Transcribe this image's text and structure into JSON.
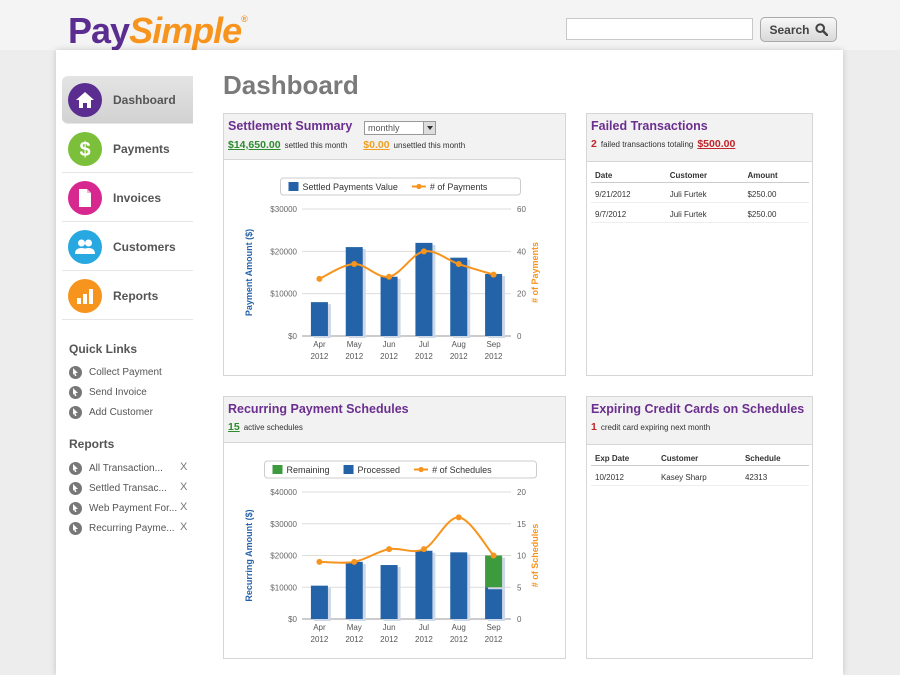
{
  "brand": {
    "part1": "Pay",
    "part2": "Simple",
    "reg": "®"
  },
  "search": {
    "placeholder": "",
    "button_label": "Search"
  },
  "nav": {
    "items": [
      {
        "label": "Dashboard",
        "icon": "house-icon",
        "color": "#5b2d90"
      },
      {
        "label": "Payments",
        "icon": "dollar-icon",
        "color": "#7cbf3a"
      },
      {
        "label": "Invoices",
        "icon": "document-icon",
        "color": "#d6288e"
      },
      {
        "label": "Customers",
        "icon": "people-icon",
        "color": "#28a8e0"
      },
      {
        "label": "Reports",
        "icon": "bar-chart-icon",
        "color": "#f7941d"
      }
    ]
  },
  "quick_links": {
    "heading": "Quick Links",
    "items": [
      "Collect Payment",
      "Send Invoice",
      "Add Customer"
    ]
  },
  "reports": {
    "heading": "Reports",
    "items": [
      "All Transaction...",
      "Settled Transac...",
      "Web Payment For...",
      "Recurring Payme..."
    ],
    "remove_label": "X"
  },
  "page_title": "Dashboard",
  "settlement": {
    "title": "Settlement Summary",
    "period": "monthly",
    "settled_amount": "$14,650.00",
    "settled_text": "settled this month",
    "unsettled_amount": "$0.00",
    "unsettled_text": "unsettled this month"
  },
  "failed": {
    "title": "Failed Transactions",
    "count": "2",
    "text": "failed transactions totaling",
    "total": "$500.00",
    "columns": [
      "Date",
      "Customer",
      "Amount"
    ],
    "rows": [
      [
        "9/21/2012",
        "Juli Furtek",
        "$250.00"
      ],
      [
        "9/7/2012",
        "Juli Furtek",
        "$250.00"
      ]
    ]
  },
  "recurring": {
    "title": "Recurring Payment Schedules",
    "count": "15",
    "text": "active schedules"
  },
  "expiring": {
    "title": "Expiring Credit Cards on Schedules",
    "count": "1",
    "text": "credit card expiring next month",
    "columns": [
      "Exp Date",
      "Customer",
      "Schedule"
    ],
    "rows": [
      [
        "10/2012",
        "Kasey Sharp",
        "42313"
      ]
    ]
  },
  "chart_data": [
    {
      "type": "bar",
      "categories": [
        "Apr 2012",
        "May 2012",
        "Jun 2012",
        "Jul 2012",
        "Aug 2012",
        "Sep 2012"
      ],
      "series": [
        {
          "name": "Settled Payments Value",
          "type": "bar",
          "axis": "left",
          "color": "#2563a8",
          "values": [
            8000,
            21000,
            14000,
            22000,
            18500,
            14650
          ]
        },
        {
          "name": "# of Payments",
          "type": "line",
          "axis": "right",
          "color": "#f7941d",
          "values": [
            27,
            34,
            28,
            40,
            34,
            29
          ]
        }
      ],
      "ylabel": "Payment Amount ($)",
      "y2label": "# of Payments",
      "ylim": [
        0,
        30000
      ],
      "y2lim": [
        0,
        60
      ],
      "yticks": [
        "$0",
        "$10000",
        "$20000",
        "$30000"
      ],
      "y2ticks": [
        "0",
        "20",
        "40",
        "60"
      ],
      "legend": "top"
    },
    {
      "type": "bar",
      "categories": [
        "Apr 2012",
        "May 2012",
        "Jun 2012",
        "Jul 2012",
        "Aug 2012",
        "Sep 2012"
      ],
      "series": [
        {
          "name": "Remaining",
          "type": "bar",
          "stack": true,
          "axis": "left",
          "color": "#3d9a3d",
          "values": [
            0,
            0,
            0,
            0,
            0,
            10000
          ]
        },
        {
          "name": "Processed",
          "type": "bar",
          "stack": true,
          "axis": "left",
          "color": "#2563a8",
          "values": [
            10500,
            18000,
            17000,
            21500,
            21000,
            10000
          ]
        },
        {
          "name": "# of Schedules",
          "type": "line",
          "axis": "right",
          "color": "#f7941d",
          "values": [
            9,
            9,
            11,
            11,
            16,
            10
          ]
        }
      ],
      "ylabel": "Recurring Amount ($)",
      "y2label": "# of Schedules",
      "ylim": [
        0,
        40000
      ],
      "y2lim": [
        0,
        20
      ],
      "yticks": [
        "$0",
        "$10000",
        "$20000",
        "$30000",
        "$40000"
      ],
      "y2ticks": [
        "0",
        "5",
        "10",
        "15",
        "20"
      ],
      "legend": "top"
    }
  ]
}
